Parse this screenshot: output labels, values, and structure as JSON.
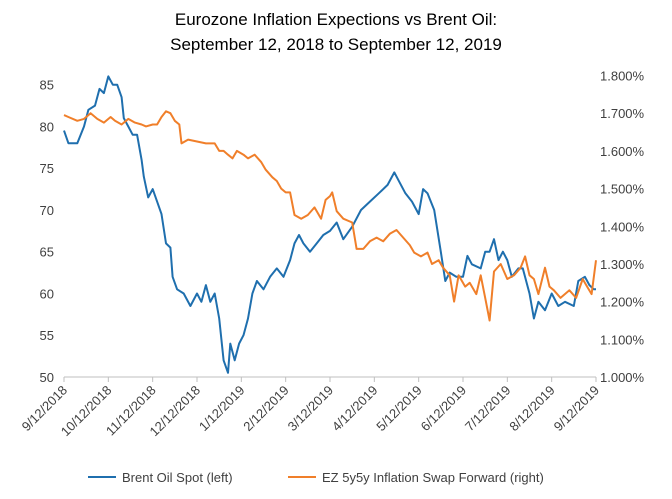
{
  "chart_data": {
    "type": "line",
    "title": "Eurozone Inflation Expections vs Brent Oil:",
    "subtitle": "September 12, 2018 to September 12, 2019",
    "left_axis": {
      "ylim": [
        50,
        87
      ],
      "ticks": [
        50,
        55,
        60,
        65,
        70,
        75,
        80,
        85
      ]
    },
    "right_axis": {
      "ylim": [
        1.0,
        1.82
      ],
      "ticks": [
        "1.000%",
        "1.100%",
        "1.200%",
        "1.300%",
        "1.400%",
        "1.500%",
        "1.600%",
        "1.700%",
        "1.800%"
      ]
    },
    "x_ticks": [
      "9/12/2018",
      "10/12/2018",
      "11/12/2018",
      "12/12/2018",
      "1/12/2019",
      "2/12/2019",
      "3/12/2019",
      "4/12/2019",
      "5/12/2019",
      "6/12/2019",
      "7/12/2019",
      "8/12/2019",
      "9/12/2019"
    ],
    "grid": false,
    "legend": "bottom",
    "series": [
      {
        "name": "Brent Oil Spot (left)",
        "color": "#1f6fae",
        "axis": "left",
        "points": [
          [
            0,
            79.5
          ],
          [
            0.1,
            78
          ],
          [
            0.3,
            78
          ],
          [
            0.45,
            80
          ],
          [
            0.55,
            82
          ],
          [
            0.7,
            82.5
          ],
          [
            0.8,
            84.5
          ],
          [
            0.9,
            84
          ],
          [
            1.0,
            86
          ],
          [
            1.1,
            85
          ],
          [
            1.2,
            85
          ],
          [
            1.3,
            83.5
          ],
          [
            1.35,
            81
          ],
          [
            1.45,
            80
          ],
          [
            1.55,
            79
          ],
          [
            1.65,
            79
          ],
          [
            1.75,
            76
          ],
          [
            1.8,
            74
          ],
          [
            1.9,
            71.5
          ],
          [
            2.0,
            72.5
          ],
          [
            2.1,
            71
          ],
          [
            2.2,
            69.5
          ],
          [
            2.3,
            66
          ],
          [
            2.4,
            65.5
          ],
          [
            2.45,
            62
          ],
          [
            2.55,
            60.5
          ],
          [
            2.7,
            60
          ],
          [
            2.85,
            58.5
          ],
          [
            3.0,
            60
          ],
          [
            3.1,
            59
          ],
          [
            3.2,
            61
          ],
          [
            3.3,
            59
          ],
          [
            3.4,
            60
          ],
          [
            3.5,
            57
          ],
          [
            3.6,
            52
          ],
          [
            3.7,
            50.5
          ],
          [
            3.75,
            54
          ],
          [
            3.85,
            52
          ],
          [
            3.95,
            54
          ],
          [
            4.05,
            55
          ],
          [
            4.15,
            57
          ],
          [
            4.25,
            60
          ],
          [
            4.35,
            61.5
          ],
          [
            4.5,
            60.5
          ],
          [
            4.65,
            62
          ],
          [
            4.8,
            63
          ],
          [
            4.95,
            62
          ],
          [
            5.1,
            64
          ],
          [
            5.2,
            66
          ],
          [
            5.3,
            67
          ],
          [
            5.4,
            66
          ],
          [
            5.55,
            65
          ],
          [
            5.7,
            66
          ],
          [
            5.85,
            67
          ],
          [
            6.0,
            67.5
          ],
          [
            6.15,
            68.5
          ],
          [
            6.3,
            66.5
          ],
          [
            6.5,
            68
          ],
          [
            6.7,
            70
          ],
          [
            6.9,
            71
          ],
          [
            7.1,
            72
          ],
          [
            7.3,
            73
          ],
          [
            7.45,
            74.5
          ],
          [
            7.55,
            73.5
          ],
          [
            7.7,
            72
          ],
          [
            7.85,
            71
          ],
          [
            8.0,
            69.5
          ],
          [
            8.1,
            72.5
          ],
          [
            8.2,
            72
          ],
          [
            8.35,
            70
          ],
          [
            8.5,
            65
          ],
          [
            8.6,
            61.5
          ],
          [
            8.7,
            62.5
          ],
          [
            8.85,
            62
          ],
          [
            9.0,
            62
          ],
          [
            9.1,
            64.5
          ],
          [
            9.2,
            63.5
          ],
          [
            9.4,
            63
          ],
          [
            9.5,
            65
          ],
          [
            9.6,
            65
          ],
          [
            9.7,
            66.5
          ],
          [
            9.8,
            64
          ],
          [
            9.9,
            65
          ],
          [
            10.0,
            64
          ],
          [
            10.1,
            62
          ],
          [
            10.25,
            63
          ],
          [
            10.35,
            63
          ],
          [
            10.5,
            60
          ],
          [
            10.6,
            57
          ],
          [
            10.7,
            59
          ],
          [
            10.85,
            58
          ],
          [
            11.0,
            60
          ],
          [
            11.15,
            58.5
          ],
          [
            11.3,
            59
          ],
          [
            11.5,
            58.5
          ],
          [
            11.6,
            61.5
          ],
          [
            11.75,
            62
          ],
          [
            11.85,
            61
          ],
          [
            11.95,
            60.5
          ],
          [
            12.0,
            60.5
          ]
        ]
      },
      {
        "name": "EZ 5y5y Inflation Swap Forward (right)",
        "color": "#f07f2a",
        "axis": "right",
        "points": [
          [
            0,
            1.695
          ],
          [
            0.1,
            1.69
          ],
          [
            0.3,
            1.68
          ],
          [
            0.45,
            1.685
          ],
          [
            0.6,
            1.7
          ],
          [
            0.75,
            1.685
          ],
          [
            0.9,
            1.675
          ],
          [
            1.05,
            1.69
          ],
          [
            1.15,
            1.68
          ],
          [
            1.3,
            1.67
          ],
          [
            1.45,
            1.685
          ],
          [
            1.6,
            1.675
          ],
          [
            1.75,
            1.67
          ],
          [
            1.85,
            1.665
          ],
          [
            2.0,
            1.67
          ],
          [
            2.1,
            1.67
          ],
          [
            2.2,
            1.69
          ],
          [
            2.3,
            1.705
          ],
          [
            2.4,
            1.7
          ],
          [
            2.5,
            1.68
          ],
          [
            2.6,
            1.67
          ],
          [
            2.65,
            1.62
          ],
          [
            2.8,
            1.63
          ],
          [
            3.0,
            1.625
          ],
          [
            3.2,
            1.62
          ],
          [
            3.4,
            1.62
          ],
          [
            3.5,
            1.6
          ],
          [
            3.6,
            1.6
          ],
          [
            3.7,
            1.59
          ],
          [
            3.8,
            1.58
          ],
          [
            3.9,
            1.6
          ],
          [
            4.05,
            1.59
          ],
          [
            4.15,
            1.58
          ],
          [
            4.3,
            1.59
          ],
          [
            4.45,
            1.57
          ],
          [
            4.55,
            1.55
          ],
          [
            4.7,
            1.53
          ],
          [
            4.8,
            1.52
          ],
          [
            4.9,
            1.5
          ],
          [
            5.0,
            1.49
          ],
          [
            5.1,
            1.49
          ],
          [
            5.2,
            1.43
          ],
          [
            5.35,
            1.42
          ],
          [
            5.5,
            1.43
          ],
          [
            5.65,
            1.45
          ],
          [
            5.8,
            1.42
          ],
          [
            5.9,
            1.47
          ],
          [
            6.0,
            1.48
          ],
          [
            6.05,
            1.49
          ],
          [
            6.15,
            1.44
          ],
          [
            6.3,
            1.42
          ],
          [
            6.5,
            1.41
          ],
          [
            6.6,
            1.34
          ],
          [
            6.75,
            1.34
          ],
          [
            6.9,
            1.36
          ],
          [
            7.05,
            1.37
          ],
          [
            7.2,
            1.36
          ],
          [
            7.35,
            1.38
          ],
          [
            7.5,
            1.39
          ],
          [
            7.65,
            1.37
          ],
          [
            7.8,
            1.35
          ],
          [
            7.9,
            1.33
          ],
          [
            8.05,
            1.32
          ],
          [
            8.2,
            1.33
          ],
          [
            8.3,
            1.3
          ],
          [
            8.45,
            1.31
          ],
          [
            8.55,
            1.29
          ],
          [
            8.7,
            1.27
          ],
          [
            8.8,
            1.2
          ],
          [
            8.9,
            1.27
          ],
          [
            9.05,
            1.24
          ],
          [
            9.15,
            1.25
          ],
          [
            9.3,
            1.22
          ],
          [
            9.4,
            1.27
          ],
          [
            9.5,
            1.21
          ],
          [
            9.6,
            1.15
          ],
          [
            9.7,
            1.28
          ],
          [
            9.85,
            1.3
          ],
          [
            10.0,
            1.26
          ],
          [
            10.15,
            1.27
          ],
          [
            10.3,
            1.29
          ],
          [
            10.4,
            1.32
          ],
          [
            10.5,
            1.27
          ],
          [
            10.6,
            1.26
          ],
          [
            10.7,
            1.22
          ],
          [
            10.85,
            1.29
          ],
          [
            10.95,
            1.24
          ],
          [
            11.05,
            1.23
          ],
          [
            11.2,
            1.21
          ],
          [
            11.4,
            1.23
          ],
          [
            11.55,
            1.21
          ],
          [
            11.7,
            1.26
          ],
          [
            11.8,
            1.24
          ],
          [
            11.9,
            1.22
          ],
          [
            12.0,
            1.31
          ]
        ]
      }
    ]
  }
}
